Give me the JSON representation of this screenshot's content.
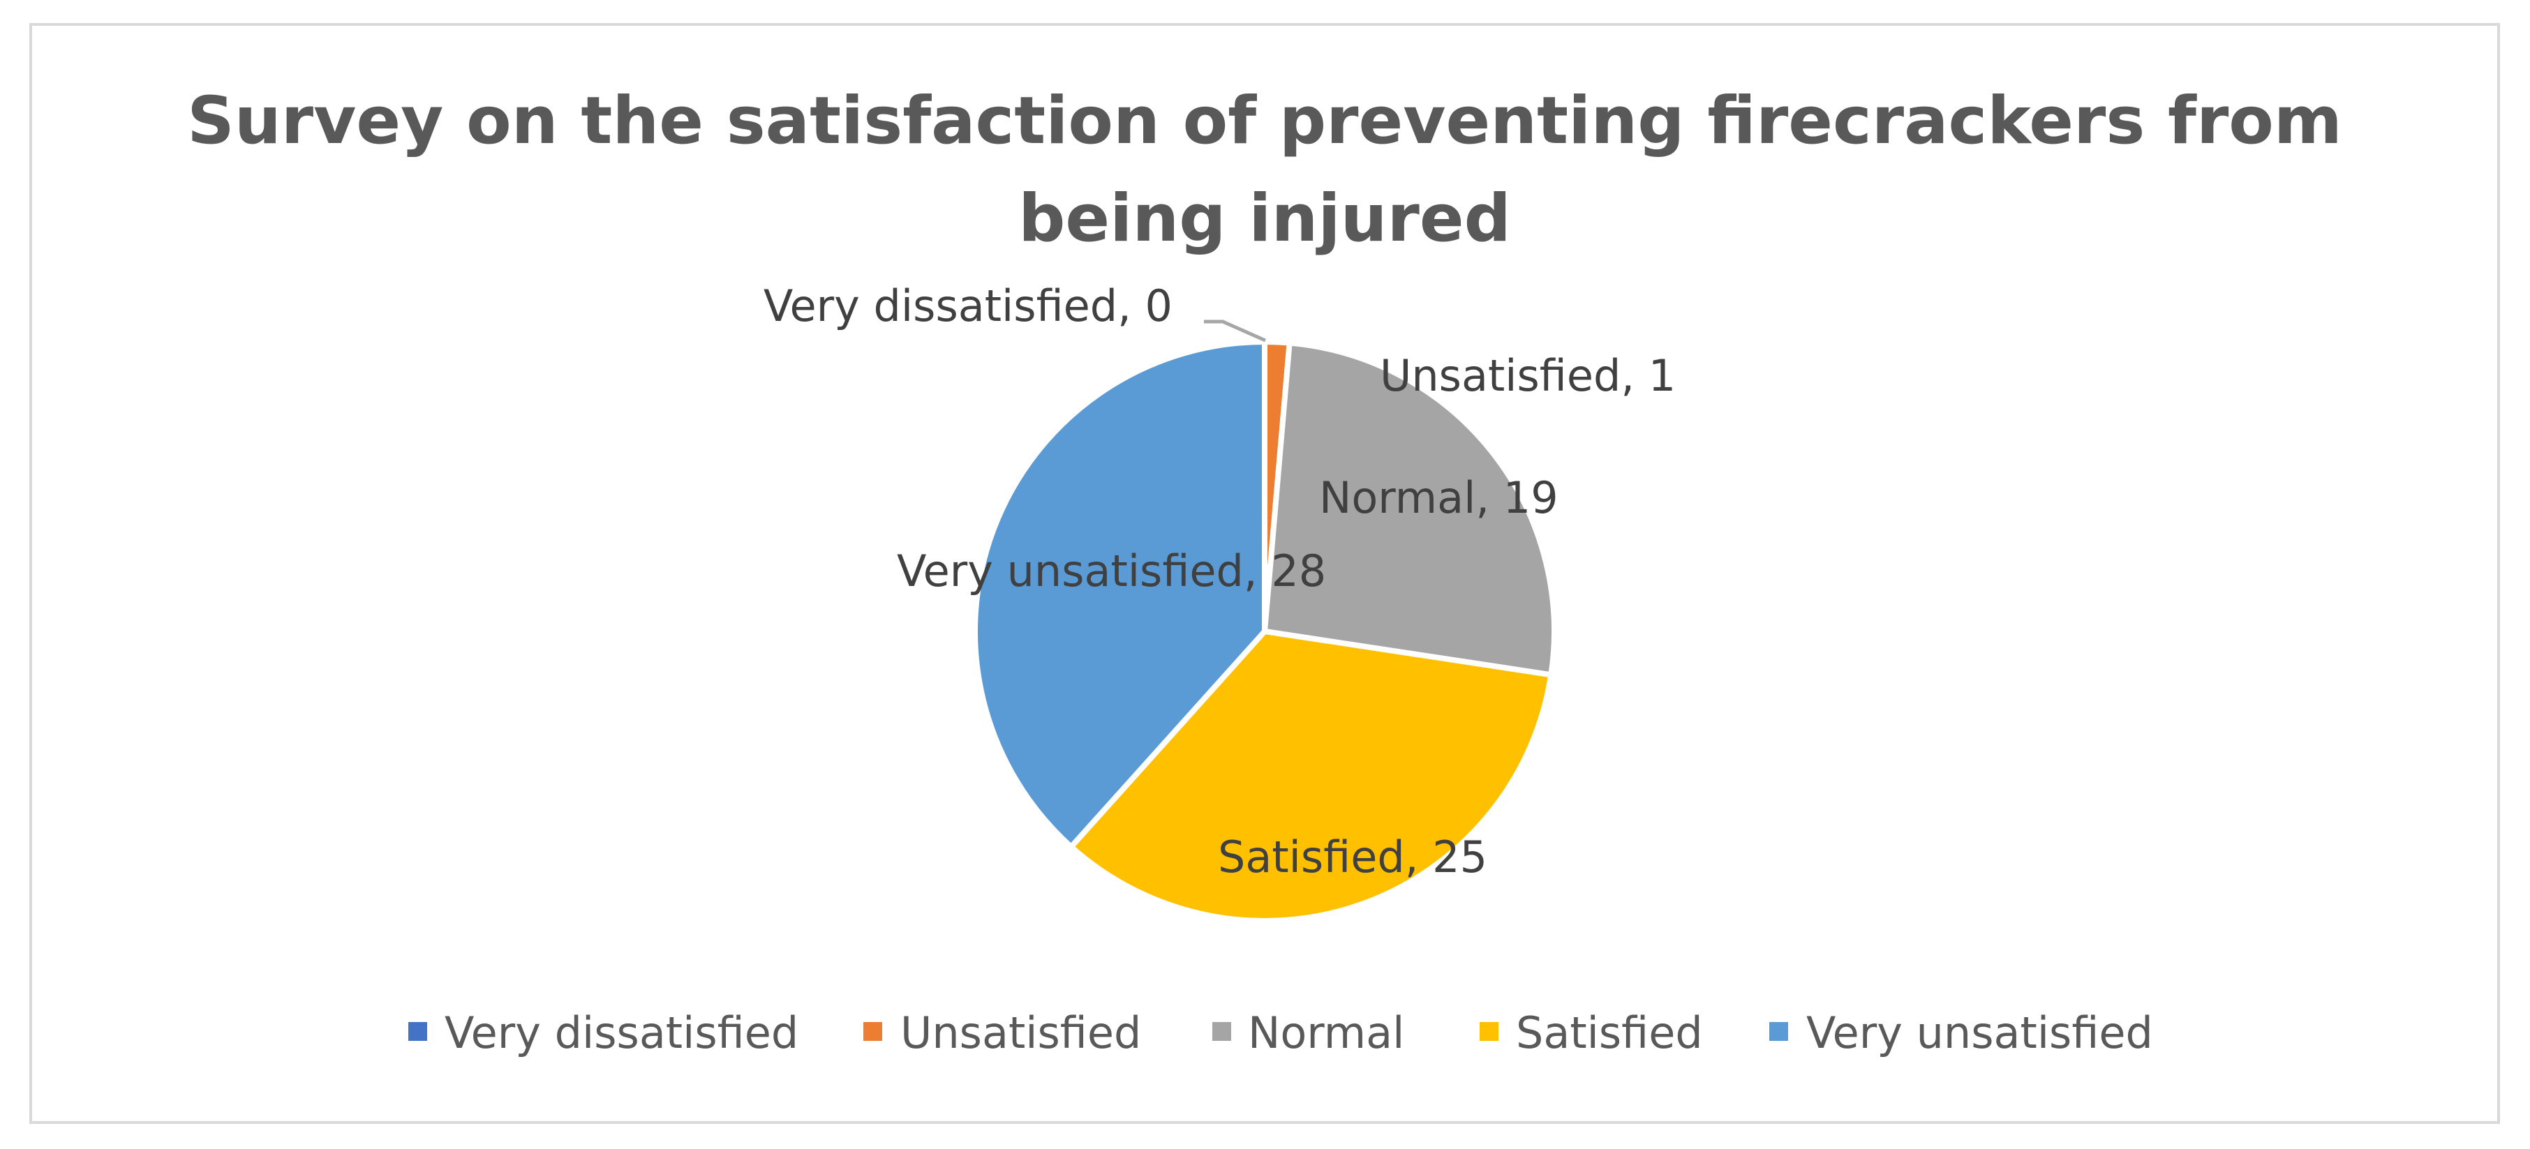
{
  "chart_data": {
    "type": "pie",
    "title_lines": [
      "Survey on the satisfaction of preventing firecrackers from",
      "being injured"
    ],
    "categories": [
      "Very dissatisfied",
      "Unsatisfied",
      "Normal",
      "Satisfied",
      "Very unsatisfied"
    ],
    "values": [
      0,
      1,
      19,
      25,
      28
    ],
    "colors": [
      "#4472c4",
      "#ed7d31",
      "#a5a5a5",
      "#ffc000",
      "#5b9bd5"
    ],
    "data_labels": [
      "Very dissatisfied, 0",
      "Unsatisfied, 1",
      "Normal, 19",
      "Satisfied, 25",
      "Very unsatisfied, 28"
    ],
    "legend_position": "bottom",
    "start_angle_deg": 0,
    "direction": "clockwise"
  }
}
